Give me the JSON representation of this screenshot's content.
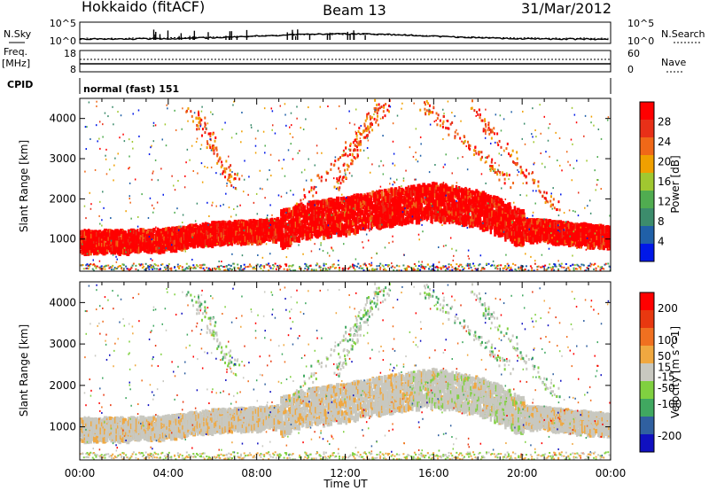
{
  "header": {
    "station": "Hokkaido (fitACF)",
    "beam": "Beam 13",
    "date": "31/Mar/2012"
  },
  "top_panel": {
    "left_label": "N.Sky",
    "left_ticks": [
      "10^5",
      "10^0"
    ],
    "right_ticks": [
      "10^5",
      "10^0"
    ],
    "right_label": "N.Search"
  },
  "freq_panel": {
    "label_line1": "Freq.",
    "label_line2": "[MHz]",
    "left_ticks": [
      "18",
      "8"
    ],
    "right_ticks": [
      "60",
      "0"
    ],
    "right_label": "Nave"
  },
  "cpid_panel": {
    "label": "CPID",
    "text": "normal (fast) 151"
  },
  "colors": {
    "power_scale": [
      "#0018e8",
      "#2060a8",
      "#3c8c6c",
      "#50ac50",
      "#a0c830",
      "#f0a000",
      "#f06818",
      "#e83018",
      "#ff0000"
    ],
    "velocity_scale": [
      "#ff0000",
      "#e83810",
      "#f07020",
      "#f0a840",
      "#c8c8c0",
      "#80d040",
      "#40a860",
      "#3060a0",
      "#1010c0"
    ]
  },
  "chart_data": [
    {
      "type": "heatmap",
      "panel": "power",
      "xlabel": "",
      "ylabel": "Slant Range [km]",
      "x_ticks": [
        "00:00",
        "04:00",
        "08:00",
        "12:00",
        "16:00",
        "20:00",
        "00:00"
      ],
      "y_ticks": [
        1000,
        2000,
        3000,
        4000
      ],
      "ylim": [
        200,
        4500
      ],
      "colorbar": {
        "label": "Power [dB]",
        "ticks": [
          4,
          8,
          12,
          16,
          20,
          24,
          28
        ],
        "range": [
          0,
          32
        ]
      },
      "main_band_center_km": [
        {
          "t": 0,
          "km": 1000
        },
        {
          "t": 2,
          "km": 1000
        },
        {
          "t": 4,
          "km": 1050
        },
        {
          "t": 6,
          "km": 1200
        },
        {
          "t": 8,
          "km": 1250
        },
        {
          "t": 9,
          "km": 1300
        },
        {
          "t": 10,
          "km": 1500
        },
        {
          "t": 12,
          "km": 1650
        },
        {
          "t": 14,
          "km": 1850
        },
        {
          "t": 16,
          "km": 2000
        },
        {
          "t": 18,
          "km": 1800
        },
        {
          "t": 19,
          "km": 1600
        },
        {
          "t": 20,
          "km": 1300
        },
        {
          "t": 22,
          "km": 1200
        },
        {
          "t": 24,
          "km": 1100
        }
      ]
    },
    {
      "type": "heatmap",
      "panel": "velocity",
      "xlabel": "Time UT",
      "ylabel": "Slant Range [km]",
      "x_ticks": [
        "00:00",
        "04:00",
        "08:00",
        "12:00",
        "16:00",
        "20:00",
        "00:00"
      ],
      "y_ticks": [
        1000,
        2000,
        3000,
        4000
      ],
      "ylim": [
        200,
        4500
      ],
      "colorbar": {
        "label": "Velocity [m s^-1]",
        "ticks": [
          200,
          100,
          50,
          15,
          -15,
          -50,
          -100,
          -200
        ],
        "range": [
          -250,
          250
        ]
      }
    }
  ]
}
